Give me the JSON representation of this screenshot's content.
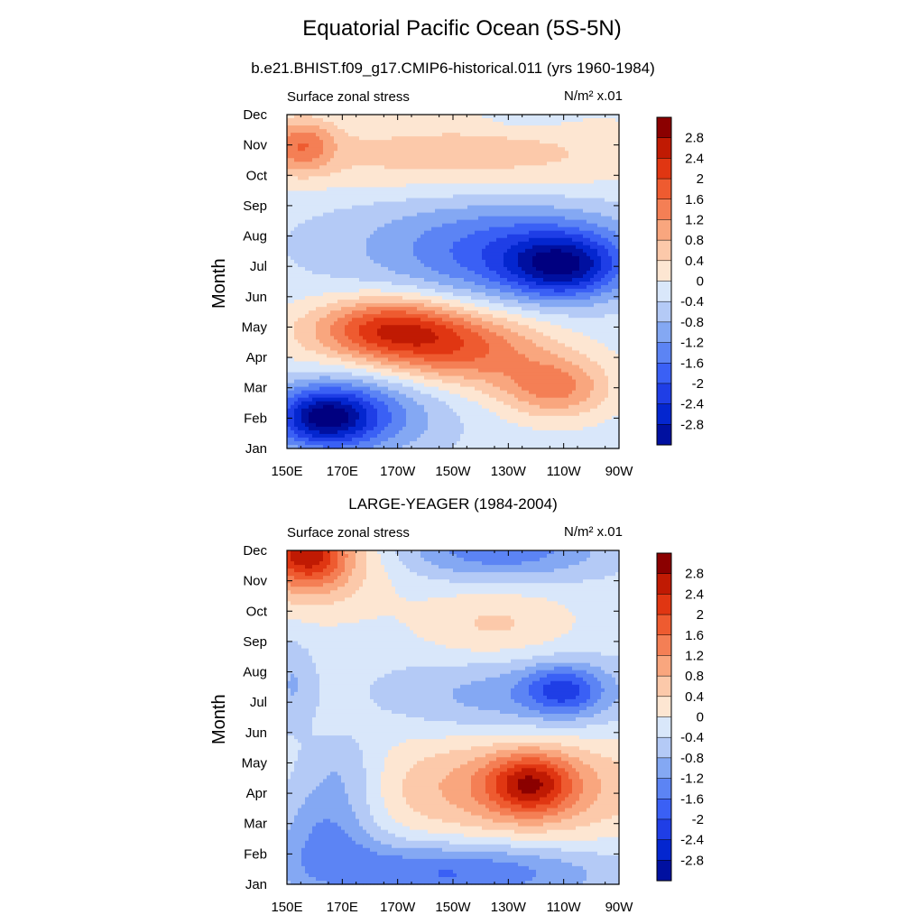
{
  "title": "Equatorial Pacific Ocean (5S-5N)",
  "chart_data": [
    {
      "type": "heatmap",
      "title": "b.e21.BHIST.f09_g17.CMIP6-historical.011 (yrs 1960-1984)",
      "left_label": "Surface zonal stress",
      "units": "N/m² x.01",
      "ylabel": "Month",
      "xlabel": "",
      "x_ticks": [
        "150E",
        "170E",
        "170W",
        "150W",
        "130W",
        "110W",
        "90W"
      ],
      "y_ticks": [
        "Jan",
        "Feb",
        "Mar",
        "Apr",
        "May",
        "Jun",
        "Jul",
        "Aug",
        "Sep",
        "Oct",
        "Nov",
        "Dec"
      ],
      "xlim": [
        150,
        270
      ],
      "ylim": [
        1,
        12
      ],
      "colorbar_labels": [
        "2.8",
        "2.4",
        "2",
        "1.6",
        "1.2",
        "0.8",
        "0.4",
        "0",
        "-0.4",
        "-0.8",
        "-1.2",
        "-1.6",
        "-2",
        "-2.4",
        "-2.8"
      ],
      "features": [
        {
          "lon": 163,
          "month": 2.0,
          "value": -2.2,
          "rx": 17,
          "ry": 0.9
        },
        {
          "lon": 175,
          "month": 2.2,
          "value": -1.4,
          "rx": 30,
          "ry": 1.5
        },
        {
          "lon": 187,
          "month": 5.0,
          "value": 1.7,
          "rx": 25,
          "ry": 1.0
        },
        {
          "lon": 190,
          "month": 4.6,
          "value": 0.9,
          "rx": 45,
          "ry": 1.3
        },
        {
          "lon": 215,
          "month": 4.2,
          "value": 1.3,
          "rx": 30,
          "ry": 1.2
        },
        {
          "lon": 247,
          "month": 3.0,
          "value": 1.5,
          "rx": 20,
          "ry": 1.0
        },
        {
          "lon": 250,
          "month": 7.0,
          "value": -2.0,
          "rx": 20,
          "ry": 1.0
        },
        {
          "lon": 236,
          "month": 7.4,
          "value": -1.2,
          "rx": 42,
          "ry": 1.5
        },
        {
          "lon": 212,
          "month": 7.8,
          "value": -0.6,
          "rx": 58,
          "ry": 2.2
        },
        {
          "lon": 155,
          "month": 11.0,
          "value": 1.4,
          "rx": 12,
          "ry": 0.9
        },
        {
          "lon": 212,
          "month": 10.6,
          "value": 0.9,
          "rx": 75,
          "ry": 1.3
        },
        {
          "lon": 237,
          "month": 12.0,
          "value": -0.4,
          "rx": 14,
          "ry": 0.5
        }
      ]
    },
    {
      "type": "heatmap",
      "title": "LARGE-YEAGER (1984-2004)",
      "left_label": "Surface zonal stress",
      "units": "N/m² x.01",
      "ylabel": "Month",
      "xlabel": "",
      "x_ticks": [
        "150E",
        "170E",
        "170W",
        "150W",
        "130W",
        "110W",
        "90W"
      ],
      "y_ticks": [
        "Jan",
        "Feb",
        "Mar",
        "Apr",
        "May",
        "Jun",
        "Jul",
        "Aug",
        "Sep",
        "Oct",
        "Nov",
        "Dec"
      ],
      "xlim": [
        150,
        270
      ],
      "ylim": [
        1,
        12
      ],
      "colorbar_labels": [
        "2.8",
        "2.4",
        "2",
        "1.6",
        "1.2",
        "0.8",
        "0.4",
        "0",
        "-0.4",
        "-0.8",
        "-1.2",
        "-1.6",
        "-2",
        "-2.4",
        "-2.8"
      ],
      "features": [
        {
          "lon": 157,
          "month": 12.0,
          "value": 2.0,
          "rx": 14,
          "ry": 1.1
        },
        {
          "lon": 160,
          "month": 11.6,
          "value": 1.1,
          "rx": 26,
          "ry": 1.6
        },
        {
          "lon": 227,
          "month": 12.0,
          "value": -1.3,
          "rx": 38,
          "ry": 1.0
        },
        {
          "lon": 225,
          "month": 9.5,
          "value": 0.7,
          "rx": 28,
          "ry": 1.3
        },
        {
          "lon": 233,
          "month": 7.2,
          "value": -0.9,
          "rx": 45,
          "ry": 1.4
        },
        {
          "lon": 250,
          "month": 7.4,
          "value": -1.4,
          "rx": 14,
          "ry": 0.8
        },
        {
          "lon": 152,
          "month": 7.6,
          "value": -0.6,
          "rx": 8,
          "ry": 1.5
        },
        {
          "lon": 232,
          "month": 4.2,
          "value": 1.3,
          "rx": 52,
          "ry": 1.8
        },
        {
          "lon": 238,
          "month": 4.3,
          "value": 1.9,
          "rx": 15,
          "ry": 1.0
        },
        {
          "lon": 165,
          "month": 2.8,
          "value": -1.1,
          "rx": 18,
          "ry": 1.6
        },
        {
          "lon": 210,
          "month": 1.4,
          "value": -1.5,
          "rx": 55,
          "ry": 1.0
        },
        {
          "lon": 170,
          "month": 4.8,
          "value": -0.6,
          "rx": 15,
          "ry": 1.2
        }
      ]
    }
  ],
  "colors": {
    "levels_low_to_high": [
      "#000080",
      "#0010a0",
      "#0426cf",
      "#1f3ee6",
      "#3a60f5",
      "#5c84f4",
      "#84a8f3",
      "#b4caf6",
      "#d9e7fa",
      "#fde6d2",
      "#fcc9aa",
      "#f9a67e",
      "#f47f55",
      "#ee5b30",
      "#e03612",
      "#c01a03",
      "#8b0000"
    ],
    "thresholds": [
      -2.8,
      -2.4,
      -2.0,
      -1.6,
      -1.2,
      -0.8,
      -0.4,
      0,
      0.4,
      0.8,
      1.2,
      1.6,
      2.0,
      2.4,
      2.8,
      3.2
    ]
  }
}
